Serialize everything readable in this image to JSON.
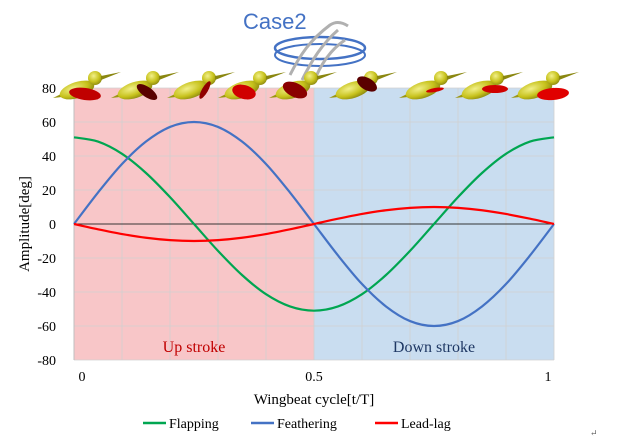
{
  "chart_data": {
    "type": "line",
    "annotation": "Case2",
    "xlabel": "Wingbeat cycle[t/T]",
    "ylabel": "Amplitude[deg]",
    "xlim": [
      0,
      1
    ],
    "ylim": [
      -80,
      80
    ],
    "x_ticks": [
      "0",
      "0.5",
      "1"
    ],
    "y_ticks": [
      "80",
      "60",
      "40",
      "20",
      "0",
      "-20",
      "-40",
      "-60",
      "-80"
    ],
    "grid": true,
    "legend_position": "bottom",
    "regions": [
      {
        "label": "Up stroke",
        "x_range": [
          0,
          0.5
        ],
        "color": "#f8c6c8",
        "text_color": "#c00000"
      },
      {
        "label": "Down stroke",
        "x_range": [
          0.5,
          1
        ],
        "color": "#c9ddf0",
        "text_color": "#1f3864"
      }
    ],
    "series": [
      {
        "name": "Flapping",
        "color": "#00a651",
        "x": [
          0,
          0.05,
          0.1,
          0.15,
          0.2,
          0.25,
          0.3,
          0.35,
          0.4,
          0.45,
          0.5,
          0.55,
          0.6,
          0.65,
          0.7,
          0.75,
          0.8,
          0.85,
          0.9,
          0.95,
          1
        ],
        "values": [
          51,
          48.5,
          41.3,
          30,
          15.8,
          0,
          -15.8,
          -30,
          -41.3,
          -48.5,
          -51,
          -48.5,
          -41.3,
          -30,
          -15.8,
          0,
          15.8,
          30,
          41.3,
          48.5,
          51
        ]
      },
      {
        "name": "Feathering",
        "color": "#4472c4",
        "x": [
          0,
          0.05,
          0.1,
          0.15,
          0.2,
          0.25,
          0.3,
          0.35,
          0.4,
          0.45,
          0.5,
          0.55,
          0.6,
          0.65,
          0.7,
          0.75,
          0.8,
          0.85,
          0.9,
          0.95,
          1
        ],
        "values": [
          0,
          18.5,
          35.3,
          48.5,
          57.1,
          60,
          57.1,
          48.5,
          35.3,
          18.5,
          0,
          -18.5,
          -35.3,
          -48.5,
          -57.1,
          -60,
          -57.1,
          -48.5,
          -35.3,
          -18.5,
          0
        ]
      },
      {
        "name": "Lead-lag",
        "color": "#ff0000",
        "x": [
          0,
          0.05,
          0.1,
          0.15,
          0.2,
          0.25,
          0.3,
          0.35,
          0.4,
          0.45,
          0.5,
          0.55,
          0.6,
          0.65,
          0.7,
          0.75,
          0.8,
          0.85,
          0.9,
          0.95,
          1
        ],
        "values": [
          0,
          -3.1,
          -5.9,
          -8.1,
          -9.5,
          -10,
          -9.5,
          -8.1,
          -5.9,
          -3.1,
          0,
          3.1,
          5.9,
          8.1,
          9.5,
          10,
          9.5,
          8.1,
          5.9,
          3.1,
          0
        ]
      }
    ],
    "corner_mark": "↵"
  }
}
